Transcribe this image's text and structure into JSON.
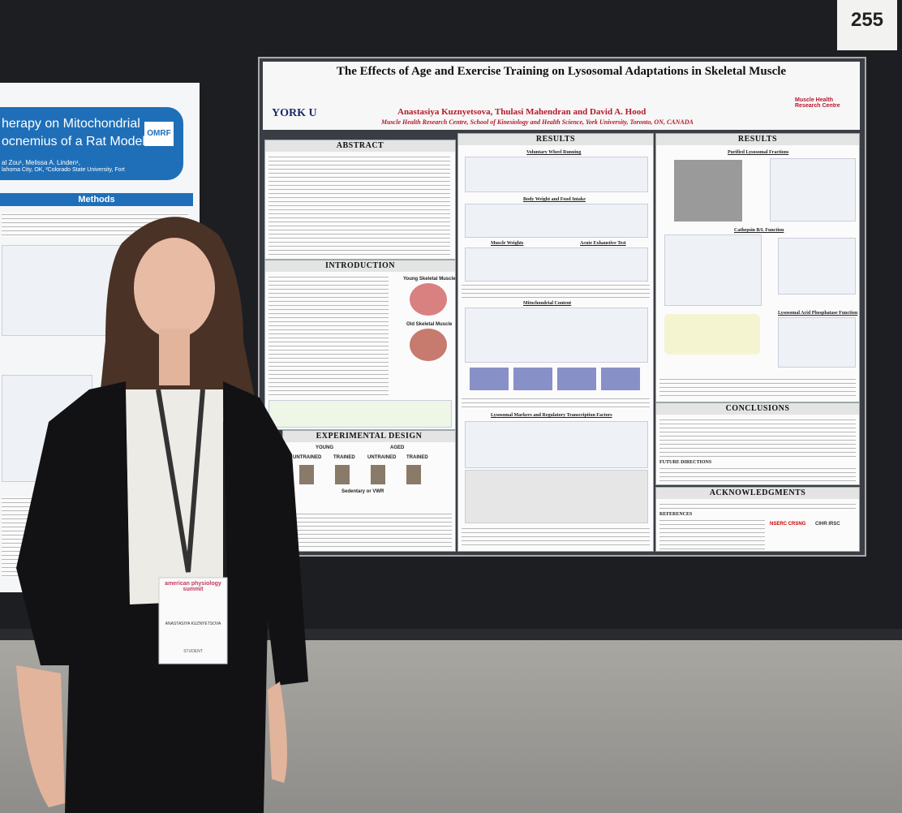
{
  "board_number": "255",
  "left_poster": {
    "title_line_1": "herapy on Mitochondrial",
    "title_line_2": "ocnemius of a Rat Model",
    "logo": "OMRF",
    "authors": "al Zou¹, Melissa A. Linden¹,",
    "affiliation": "lahoma City, OK, ²Colorado State University, Fort",
    "methods_heading": "Methods"
  },
  "poster": {
    "title": "The Effects of Age and Exercise Training on Lysosomal Adaptations in Skeletal Muscle",
    "authors": "Anastasiya Kuznyetsova, Thulasi Mahendran and David A. Hood",
    "affiliation": "Muscle Health Research Centre, School of Kinesiology and Health Science, York University, Toronto, ON, CANADA",
    "logo_left": "YORK U",
    "logo_right": "Muscle Health Research Centre",
    "sections": {
      "abstract": "ABSTRACT",
      "introduction": "INTRODUCTION",
      "experimental_design": "EXPERIMENTAL DESIGN",
      "results_1": "RESULTS",
      "results_2": "RESULTS",
      "conclusion": "CONCLUSIONS",
      "acknowledgments": "ACKNOWLEDGMENTS",
      "references": "REFERENCES",
      "future_directions": "FUTURE DIRECTIONS"
    },
    "design_labels": {
      "young": "YOUNG",
      "aged": "AGED",
      "untrained_1": "UNTRAINED",
      "trained_1": "TRAINED",
      "untrained_2": "UNTRAINED",
      "trained_2": "TRAINED",
      "condition": "Sedentary or VWR"
    },
    "intro_figure_labels": {
      "young_muscle": "Young Skeletal Muscle",
      "old_muscle": "Old Skeletal Muscle"
    },
    "result_headings": {
      "wheel": "Voluntary Wheel Running",
      "body_weight": "Body Weight and Food Intake",
      "muscle_weights": "Muscle Weights",
      "exhaustive": "Acute Exhaustive Test",
      "mito": "Mitochondrial Content",
      "lyso_markers": "Lysosomal Markers and Regulatory Transcription Factors",
      "purified": "Purified Lysosomal Fractions",
      "cathepsin": "Cathepsin B/L Function",
      "acid_phos": "Lysosomal Acid Phosphatase Function"
    },
    "funders": {
      "nserc": "NSERC CRSNG",
      "cihr": "CIHR IRSC"
    }
  },
  "badge": {
    "event": "american physiology summit",
    "name": "ANASTASIYA KUZNYETSOVA",
    "role": "STUDENT"
  }
}
